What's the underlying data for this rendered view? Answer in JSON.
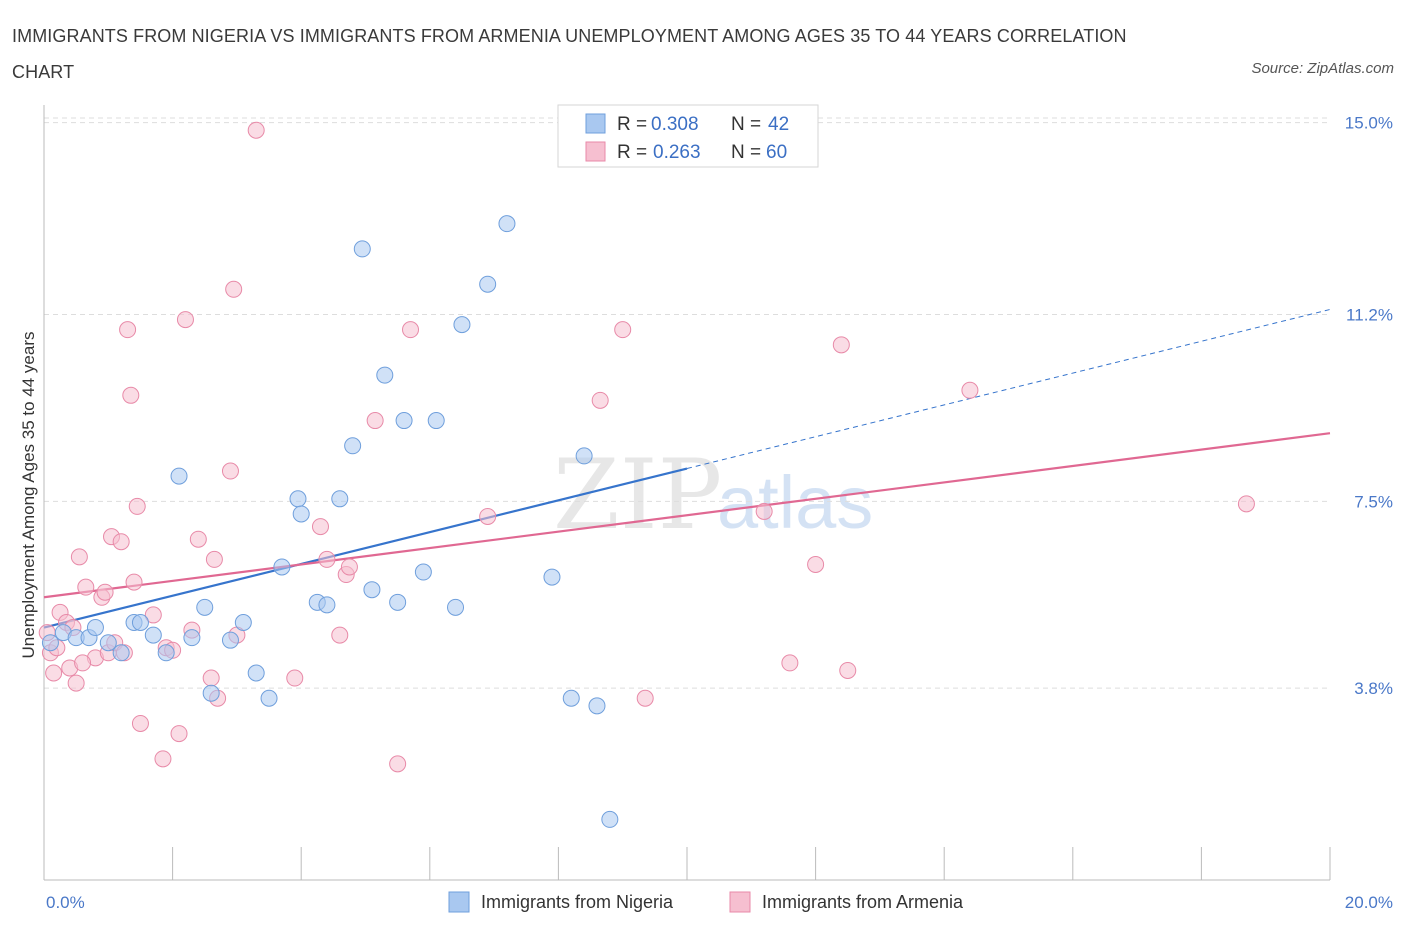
{
  "title": "IMMIGRANTS FROM NIGERIA VS IMMIGRANTS FROM ARMENIA UNEMPLOYMENT AMONG AGES 35 TO 44 YEARS CORRELATION CHART",
  "source": "Source: ZipAtlas.com",
  "watermark": {
    "zip": "ZIP",
    "atlas": "atlas"
  },
  "colors": {
    "nigeria_fill": "#a9c8f0",
    "nigeria_stroke": "#6f9fdc",
    "nigeria_line": "#3674cc",
    "armenia_fill": "#f6bfd0",
    "armenia_stroke": "#e88aa8",
    "armenia_line": "#e06892",
    "tick_label": "#4a78c8"
  },
  "legend": {
    "rows": [
      {
        "r_label": "R =",
        "r_value": "0.308",
        "n_label": "N =",
        "n_value": "42"
      },
      {
        "r_label": "R =",
        "r_value": "0.263",
        "n_label": "N =",
        "n_value": "60"
      }
    ]
  },
  "chart_data": {
    "type": "scatter",
    "ylabel": "Unemployment Among Ages 35 to 44 years",
    "xlim": [
      0,
      20
    ],
    "ylim": [
      0,
      15.35
    ],
    "x_tick_labels": [
      {
        "value": 0,
        "label": "0.0%"
      },
      {
        "value": 20,
        "label": "20.0%"
      }
    ],
    "y_tick_labels": [
      {
        "value": 3.8,
        "label": "3.8%"
      },
      {
        "value": 7.5,
        "label": "7.5%"
      },
      {
        "value": 11.2,
        "label": "11.2%"
      },
      {
        "value": 15.0,
        "label": "15.0%"
      }
    ],
    "grid": true,
    "legend_position": "top-center",
    "series": [
      {
        "name": "Immigrants from Nigeria",
        "trend": {
          "x0": 0,
          "y0": 5.0,
          "x1": 10,
          "y1": 8.15,
          "dashed_to_x": 20,
          "dashed_to_y": 11.3
        },
        "points": [
          [
            0.1,
            4.7
          ],
          [
            0.3,
            4.9
          ],
          [
            0.5,
            4.8
          ],
          [
            0.7,
            4.8
          ],
          [
            0.8,
            5.0
          ],
          [
            1.0,
            4.7
          ],
          [
            1.2,
            4.5
          ],
          [
            1.4,
            5.1
          ],
          [
            1.5,
            5.1
          ],
          [
            1.7,
            4.85
          ],
          [
            1.9,
            4.5
          ],
          [
            2.1,
            8.0
          ],
          [
            2.3,
            4.8
          ],
          [
            2.5,
            5.4
          ],
          [
            2.6,
            3.7
          ],
          [
            2.9,
            4.75
          ],
          [
            3.1,
            5.1
          ],
          [
            3.3,
            4.1
          ],
          [
            3.5,
            3.6
          ],
          [
            3.7,
            6.2
          ],
          [
            3.95,
            7.55
          ],
          [
            4.0,
            7.25
          ],
          [
            4.25,
            5.5
          ],
          [
            4.4,
            5.45
          ],
          [
            4.6,
            7.55
          ],
          [
            4.8,
            8.6
          ],
          [
            4.95,
            12.5
          ],
          [
            5.1,
            5.75
          ],
          [
            5.3,
            10.0
          ],
          [
            5.5,
            5.5
          ],
          [
            5.6,
            9.1
          ],
          [
            5.9,
            6.1
          ],
          [
            6.1,
            9.1
          ],
          [
            6.4,
            5.4
          ],
          [
            6.5,
            11.0
          ],
          [
            6.9,
            11.8
          ],
          [
            7.2,
            13.0
          ],
          [
            7.9,
            6.0
          ],
          [
            8.2,
            3.6
          ],
          [
            8.4,
            8.4
          ],
          [
            8.6,
            3.45
          ],
          [
            8.8,
            1.2
          ]
        ]
      },
      {
        "name": "Immigrants from Armenia",
        "trend": {
          "x0": 0,
          "y0": 5.6,
          "x1": 20,
          "y1": 8.85
        },
        "points": [
          [
            0.1,
            4.5
          ],
          [
            0.15,
            4.1
          ],
          [
            0.25,
            5.3
          ],
          [
            0.35,
            5.1
          ],
          [
            0.4,
            4.2
          ],
          [
            0.5,
            3.9
          ],
          [
            0.55,
            6.4
          ],
          [
            0.65,
            5.8
          ],
          [
            0.8,
            4.4
          ],
          [
            0.9,
            5.6
          ],
          [
            0.95,
            5.7
          ],
          [
            1.0,
            4.5
          ],
          [
            1.05,
            6.8
          ],
          [
            1.1,
            4.7
          ],
          [
            1.2,
            6.7
          ],
          [
            1.25,
            4.5
          ],
          [
            1.3,
            10.9
          ],
          [
            1.35,
            9.6
          ],
          [
            1.4,
            5.9
          ],
          [
            1.45,
            7.4
          ],
          [
            1.5,
            3.1
          ],
          [
            1.7,
            5.25
          ],
          [
            1.85,
            2.4
          ],
          [
            1.9,
            4.6
          ],
          [
            2.0,
            4.55
          ],
          [
            2.1,
            2.9
          ],
          [
            2.2,
            11.1
          ],
          [
            2.3,
            4.95
          ],
          [
            2.4,
            6.75
          ],
          [
            2.6,
            4.0
          ],
          [
            2.65,
            6.35
          ],
          [
            2.7,
            3.6
          ],
          [
            2.9,
            8.1
          ],
          [
            2.95,
            11.7
          ],
          [
            3.0,
            4.85
          ],
          [
            3.3,
            14.85
          ],
          [
            3.9,
            4.0
          ],
          [
            4.3,
            7.0
          ],
          [
            4.4,
            6.35
          ],
          [
            4.6,
            4.85
          ],
          [
            4.7,
            6.05
          ],
          [
            4.75,
            6.2
          ],
          [
            5.15,
            9.1
          ],
          [
            5.5,
            2.3
          ],
          [
            5.7,
            10.9
          ],
          [
            6.9,
            7.2
          ],
          [
            8.65,
            9.5
          ],
          [
            9.0,
            10.9
          ],
          [
            9.35,
            3.6
          ],
          [
            11.2,
            7.3
          ],
          [
            11.6,
            4.3
          ],
          [
            12.0,
            6.25
          ],
          [
            12.4,
            10.6
          ],
          [
            12.5,
            4.15
          ],
          [
            14.4,
            9.7
          ],
          [
            18.7,
            7.45
          ],
          [
            0.05,
            4.9
          ],
          [
            0.2,
            4.6
          ],
          [
            0.45,
            5.0
          ],
          [
            0.6,
            4.3
          ]
        ]
      }
    ]
  },
  "bottom_legend": [
    {
      "label": "Immigrants from Nigeria"
    },
    {
      "label": "Immigrants from Armenia"
    }
  ]
}
